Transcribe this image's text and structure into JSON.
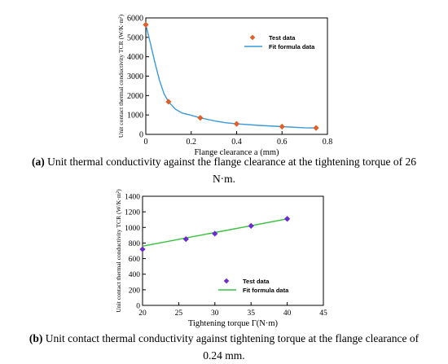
{
  "chart_data": [
    {
      "type": "scatter",
      "xlabel": "Flange clearance a (mm)",
      "ylabel": "Unit contact thermal conductivity TCR (W/K·m²)",
      "xlim": [
        0,
        0.8
      ],
      "ylim": [
        0,
        6000
      ],
      "xticks": [
        "0",
        "0.2",
        "0.4",
        "0.6",
        "0.8"
      ],
      "yticks": [
        "0",
        "1000",
        "2000",
        "3000",
        "4000",
        "5000",
        "6000"
      ],
      "legend_position": "top-right",
      "series": [
        {
          "name": "Test data",
          "kind": "marker",
          "color": "#e0602a",
          "points": [
            [
              0,
              5650
            ],
            [
              0.1,
              1680
            ],
            [
              0.24,
              850
            ],
            [
              0.4,
              540
            ],
            [
              0.6,
              400
            ],
            [
              0.75,
              330
            ]
          ]
        },
        {
          "name": "Fit formula data",
          "kind": "line",
          "color": "#3a9ad9",
          "points": [
            [
              0,
              5650
            ],
            [
              0.02,
              4700
            ],
            [
              0.04,
              3700
            ],
            [
              0.06,
              2800
            ],
            [
              0.08,
              2100
            ],
            [
              0.1,
              1680
            ],
            [
              0.13,
              1300
            ],
            [
              0.16,
              1100
            ],
            [
              0.2,
              980
            ],
            [
              0.24,
              850
            ],
            [
              0.3,
              700
            ],
            [
              0.35,
              600
            ],
            [
              0.4,
              540
            ],
            [
              0.5,
              460
            ],
            [
              0.6,
              400
            ],
            [
              0.7,
              340
            ],
            [
              0.75,
              330
            ]
          ]
        }
      ]
    },
    {
      "type": "scatter",
      "xlabel": "Tightening torque Γ(N·m)",
      "ylabel": "Unit contact thermal conductivity TCR (W/K·m²)",
      "xlim": [
        20,
        45
      ],
      "ylim": [
        0,
        1400
      ],
      "xticks": [
        "20",
        "25",
        "30",
        "35",
        "40",
        "45"
      ],
      "yticks": [
        "0",
        "200",
        "400",
        "600",
        "800",
        "1000",
        "1200",
        "1400"
      ],
      "legend_position": "bottom-right",
      "series": [
        {
          "name": "Test data",
          "kind": "marker",
          "color": "#6a2bd0",
          "points": [
            [
              20,
              720
            ],
            [
              26,
              850
            ],
            [
              30,
              920
            ],
            [
              35,
              1020
            ],
            [
              40,
              1110
            ]
          ]
        },
        {
          "name": "Fit formula data",
          "kind": "line",
          "color": "#35c040",
          "points": [
            [
              20,
              760
            ],
            [
              40,
              1110
            ]
          ]
        }
      ]
    }
  ],
  "captions": {
    "a": {
      "tag": "(a)",
      "line1": " Unit thermal conductivity against the flange clearance at the tightening torque of 26",
      "line2": "N·m."
    },
    "b": {
      "tag": "(b)",
      "line1": " Unit contact thermal conductivity against tightening torque at the flange clearance of",
      "line2": "0.24 mm."
    }
  }
}
